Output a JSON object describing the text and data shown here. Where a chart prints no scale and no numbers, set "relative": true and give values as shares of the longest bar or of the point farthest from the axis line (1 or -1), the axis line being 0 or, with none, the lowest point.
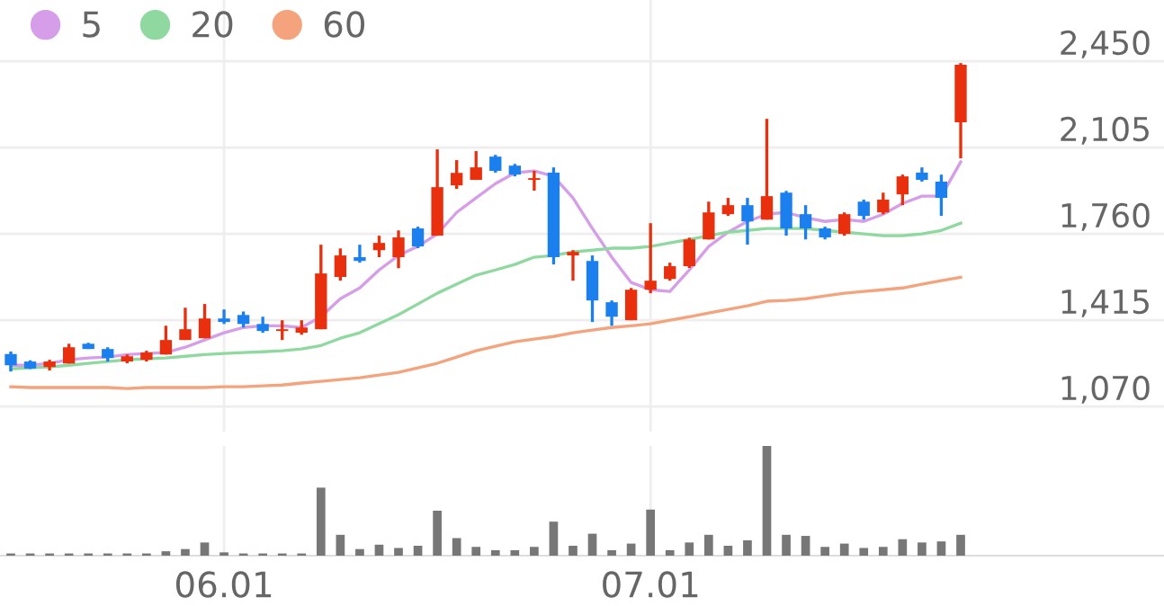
{
  "chart_data": [
    {
      "type": "candlestick",
      "categories": [
        null,
        null,
        null,
        null,
        null,
        null,
        null,
        null,
        null,
        null,
        null,
        "06.01",
        null,
        null,
        null,
        null,
        null,
        null,
        null,
        null,
        null,
        null,
        null,
        null,
        null,
        null,
        null,
        null,
        null,
        null,
        null,
        null,
        null,
        "07.01",
        null,
        null,
        null,
        null,
        null,
        null,
        null,
        null,
        null,
        null,
        null,
        null,
        null,
        null,
        null,
        null
      ],
      "ohlc": [
        [
          1280,
          1290,
          1210,
          1235
        ],
        [
          1250,
          1255,
          1220,
          1222
        ],
        [
          1228,
          1257,
          1214,
          1250
        ],
        [
          1242,
          1321,
          1242,
          1307
        ],
        [
          1321,
          1325,
          1300,
          1300
        ],
        [
          1300,
          1307,
          1250,
          1264
        ],
        [
          1250,
          1278,
          1243,
          1271
        ],
        [
          1257,
          1293,
          1250,
          1286
        ],
        [
          1278,
          1393,
          1278,
          1336
        ],
        [
          1336,
          1465,
          1336,
          1379
        ],
        [
          1343,
          1480,
          1343,
          1422
        ],
        [
          1422,
          1458,
          1400,
          1408
        ],
        [
          1436,
          1450,
          1386,
          1400
        ],
        [
          1400,
          1429,
          1365,
          1372
        ],
        [
          1372,
          1415,
          1336,
          1379
        ],
        [
          1365,
          1415,
          1357,
          1386
        ],
        [
          1379,
          1717,
          1379,
          1602
        ],
        [
          1588,
          1702,
          1573,
          1674
        ],
        [
          1667,
          1717,
          1645,
          1652
        ],
        [
          1695,
          1753,
          1667,
          1724
        ],
        [
          1667,
          1774,
          1623,
          1746
        ],
        [
          1782,
          1789,
          1703,
          1710
        ],
        [
          1753,
          2098,
          1753,
          1947
        ],
        [
          1954,
          2055,
          1940,
          2004
        ],
        [
          1976,
          2091,
          1976,
          2026
        ],
        [
          2069,
          2076,
          2005,
          2012
        ],
        [
          2033,
          2040,
          1990,
          1997
        ],
        [
          1976,
          2012,
          1933,
          1983
        ],
        [
          2005,
          2026,
          1638,
          1667
        ],
        [
          1674,
          1695,
          1573,
          1688
        ],
        [
          1652,
          1674,
          1408,
          1494
        ],
        [
          1487,
          1494,
          1393,
          1429
        ],
        [
          1415,
          1544,
          1415,
          1537
        ],
        [
          1537,
          1803,
          1523,
          1573
        ],
        [
          1580,
          1645,
          1573,
          1631
        ],
        [
          1631,
          1745,
          1624,
          1738
        ],
        [
          1738,
          1889,
          1738,
          1846
        ],
        [
          1839,
          1904,
          1832,
          1875
        ],
        [
          1875,
          1904,
          1717,
          1810
        ],
        [
          1817,
          2220,
          1817,
          1911
        ],
        [
          1925,
          1932,
          1753,
          1782
        ],
        [
          1839,
          1875,
          1738,
          1782
        ],
        [
          1782,
          1789,
          1738,
          1746
        ],
        [
          1760,
          1846,
          1753,
          1839
        ],
        [
          1889,
          1897,
          1817,
          1832
        ],
        [
          1846,
          1925,
          1839,
          1897
        ],
        [
          1918,
          1997,
          1875,
          1990
        ],
        [
          2005,
          2026,
          1969,
          1976
        ],
        [
          1969,
          1997,
          1832,
          1904
        ],
        [
          2206,
          2443,
          2062,
          2436
        ]
      ],
      "colors": [
        "#1b80ee",
        "#1b80ee",
        "#e8300e",
        "#e8300e",
        "#1b80ee",
        "#1b80ee",
        "#e8300e",
        "#e8300e",
        "#e8300e",
        "#e8300e",
        "#e8300e",
        "#1b80ee",
        "#1b80ee",
        "#1b80ee",
        "#e8300e",
        "#e8300e",
        "#e8300e",
        "#e8300e",
        "#1b80ee",
        "#e8300e",
        "#e8300e",
        "#1b80ee",
        "#e8300e",
        "#e8300e",
        "#e8300e",
        "#1b80ee",
        "#1b80ee",
        "#e8300e",
        "#1b80ee",
        "#e8300e",
        "#1b80ee",
        "#1b80ee",
        "#e8300e",
        "#e8300e",
        "#e8300e",
        "#e8300e",
        "#e8300e",
        "#e8300e",
        "#1b80ee",
        "#e8300e",
        "#1b80ee",
        "#1b80ee",
        "#1b80ee",
        "#e8300e",
        "#1b80ee",
        "#e8300e",
        "#e8300e",
        "#1b80ee",
        "#1b80ee",
        "#e8300e"
      ],
      "series": [
        {
          "name": "5",
          "type": "line",
          "color": "#d69de8",
          "values": [
            1235,
            1235,
            1243,
            1257,
            1264,
            1268,
            1278,
            1282,
            1286,
            1307,
            1336,
            1365,
            1386,
            1393,
            1393,
            1386,
            1429,
            1501,
            1544,
            1616,
            1674,
            1710,
            1760,
            1846,
            1904,
            1961,
            2004,
            2012,
            1990,
            1904,
            1782,
            1667,
            1566,
            1537,
            1530,
            1616,
            1710,
            1767,
            1810,
            1839,
            1846,
            1825,
            1810,
            1818,
            1810,
            1839,
            1882,
            1911,
            1911,
            2048
          ]
        },
        {
          "name": "20",
          "type": "line",
          "color": "#8fd9a0",
          "values": [
            1221,
            1225,
            1228,
            1235,
            1243,
            1250,
            1257,
            1261,
            1264,
            1271,
            1278,
            1282,
            1286,
            1289,
            1293,
            1300,
            1314,
            1343,
            1365,
            1401,
            1437,
            1480,
            1523,
            1559,
            1595,
            1616,
            1638,
            1667,
            1674,
            1688,
            1695,
            1703,
            1703,
            1710,
            1724,
            1738,
            1753,
            1767,
            1774,
            1782,
            1782,
            1782,
            1774,
            1767,
            1760,
            1753,
            1753,
            1760,
            1774,
            1803
          ]
        },
        {
          "name": "60",
          "type": "line",
          "color": "#f5a37c",
          "values": [
            1149,
            1146,
            1146,
            1146,
            1146,
            1146,
            1142,
            1146,
            1146,
            1146,
            1146,
            1149,
            1149,
            1153,
            1156,
            1164,
            1171,
            1178,
            1185,
            1196,
            1207,
            1225,
            1243,
            1268,
            1293,
            1311,
            1329,
            1340,
            1350,
            1365,
            1376,
            1386,
            1393,
            1401,
            1415,
            1429,
            1444,
            1458,
            1473,
            1491,
            1494,
            1501,
            1512,
            1523,
            1530,
            1537,
            1544,
            1559,
            1573,
            1587
          ]
        }
      ],
      "ylim": [
        970,
        2695
      ],
      "yticks": [
        {
          "value": 1070,
          "label": "1,070"
        },
        {
          "value": 1415,
          "label": "1,415"
        },
        {
          "value": 1760,
          "label": "1,760"
        },
        {
          "value": 2105,
          "label": "2,105"
        },
        {
          "value": 2450,
          "label": "2,450"
        }
      ],
      "grid": true,
      "legend": "top left",
      "tick_labels": "y"
    },
    {
      "type": "bar",
      "categories": [
        null,
        null,
        null,
        null,
        null,
        null,
        null,
        null,
        null,
        null,
        null,
        "06.01",
        null,
        null,
        null,
        null,
        null,
        null,
        null,
        null,
        null,
        null,
        null,
        null,
        null,
        null,
        null,
        null,
        null,
        null,
        null,
        null,
        null,
        "07.01",
        null,
        null,
        null,
        null,
        null,
        null,
        null,
        null,
        null,
        null,
        null,
        null,
        null,
        null,
        null,
        null
      ],
      "values": [
        0.02,
        0.02,
        0.02,
        0.02,
        0.02,
        0.02,
        0.02,
        0.02,
        0.04,
        0.06,
        0.12,
        0.03,
        0.02,
        0.02,
        0.02,
        0.02,
        0.62,
        0.19,
        0.06,
        0.1,
        0.07,
        0.09,
        0.41,
        0.16,
        0.08,
        0.05,
        0.05,
        0.08,
        0.31,
        0.09,
        0.2,
        0.05,
        0.11,
        0.42,
        0.05,
        0.12,
        0.19,
        0.09,
        0.14,
        1,
        0.19,
        0.18,
        0.08,
        0.11,
        0.07,
        0.08,
        0.15,
        0.12,
        0.13,
        0.19
      ],
      "color": "#777777",
      "relative": true,
      "grid": "x",
      "tick_labels": "x"
    }
  ]
}
